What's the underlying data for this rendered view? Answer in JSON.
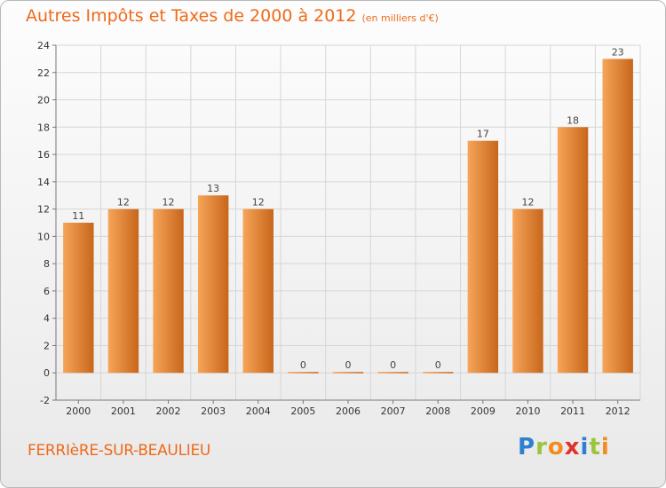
{
  "header": {
    "title": "Autres Impôts et Taxes de 2000 à 2012",
    "unit": "(en milliers d'€)"
  },
  "footer": {
    "commune": "FERRIèRE-SUR-BEAULIEU",
    "logo_letters": [
      "P",
      "r",
      "o",
      "x",
      "i",
      "t",
      "i"
    ],
    "logo_colors": [
      "#2f7fd0",
      "#9bc43a",
      "#f28c1c",
      "#e0322b",
      "#2f7fd0",
      "#9bc43a",
      "#f28c1c"
    ]
  },
  "colors": {
    "bar_light": "#f6a559",
    "bar_dark": "#c8661b",
    "title": "#ee6a1a",
    "grid": "#d6d6d6"
  },
  "chart_data": {
    "type": "bar",
    "title": "Autres Impôts et Taxes de 2000 à 2012",
    "subtitle": "(en milliers d'€)",
    "categories": [
      "2000",
      "2001",
      "2002",
      "2003",
      "2004",
      "2005",
      "2006",
      "2007",
      "2008",
      "2009",
      "2010",
      "2011",
      "2012"
    ],
    "values": [
      11,
      12,
      12,
      13,
      12,
      0,
      0,
      0,
      0,
      17,
      12,
      18,
      23
    ],
    "ylim": [
      -2,
      24
    ],
    "yticks": [
      -2,
      0,
      2,
      4,
      6,
      8,
      10,
      12,
      14,
      16,
      18,
      20,
      22,
      24
    ],
    "grid": true
  }
}
